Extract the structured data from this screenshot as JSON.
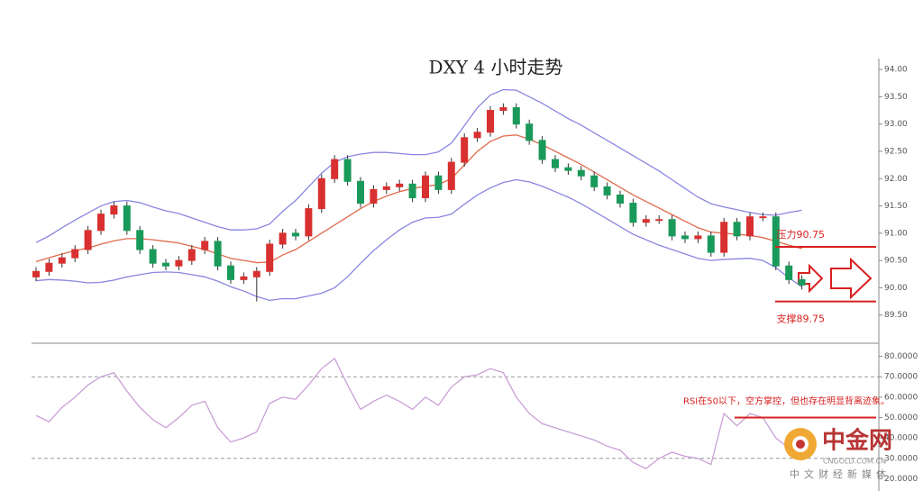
{
  "chart_data": [
    {
      "type": "candlestick",
      "title": "DXY 4 小时走势",
      "open": [
        90.2,
        90.3,
        90.45,
        90.55,
        90.7,
        91.05,
        91.35,
        91.5,
        91.05,
        90.7,
        90.45,
        90.4,
        90.5,
        90.7,
        90.85,
        90.4,
        90.15,
        90.2,
        90.3,
        90.8,
        91.0,
        90.95,
        91.45,
        92.0,
        92.35,
        91.95,
        91.55,
        91.8,
        91.85,
        91.9,
        91.65,
        92.05,
        91.8,
        92.3,
        92.75,
        92.85,
        93.25,
        93.3,
        93.0,
        92.7,
        92.35,
        92.2,
        92.15,
        92.05,
        91.85,
        91.7,
        91.55,
        91.2,
        91.25,
        91.25,
        90.95,
        90.9,
        90.95,
        90.65,
        91.2,
        90.95,
        91.3,
        91.3,
        90.4,
        90.15
      ],
      "high": [
        90.38,
        90.53,
        90.63,
        90.78,
        91.13,
        91.43,
        91.58,
        91.58,
        91.13,
        90.78,
        90.53,
        90.58,
        90.78,
        90.93,
        90.93,
        90.48,
        90.28,
        90.38,
        90.88,
        91.08,
        91.08,
        91.53,
        92.08,
        92.43,
        92.43,
        92.03,
        91.88,
        91.93,
        91.98,
        91.98,
        92.13,
        92.13,
        92.38,
        92.83,
        92.93,
        93.33,
        93.38,
        93.38,
        93.08,
        92.78,
        92.43,
        92.28,
        92.23,
        92.13,
        91.93,
        91.78,
        91.63,
        91.33,
        91.33,
        91.33,
        91.03,
        91.03,
        91.03,
        91.28,
        91.28,
        91.38,
        91.38,
        91.38,
        90.48,
        90.23
      ],
      "low": [
        90.12,
        90.22,
        90.37,
        90.47,
        90.62,
        90.97,
        91.27,
        90.97,
        90.62,
        90.37,
        90.32,
        90.32,
        90.42,
        90.62,
        90.32,
        90.07,
        90.07,
        89.75,
        90.22,
        90.72,
        90.87,
        90.87,
        91.37,
        91.92,
        91.87,
        91.47,
        91.47,
        91.72,
        91.77,
        91.57,
        91.57,
        91.72,
        91.72,
        92.22,
        92.67,
        92.77,
        93.17,
        92.92,
        92.62,
        92.27,
        92.12,
        92.07,
        91.97,
        91.77,
        91.62,
        91.47,
        91.12,
        91.12,
        91.17,
        90.87,
        90.82,
        90.82,
        90.57,
        90.57,
        90.87,
        90.87,
        91.22,
        90.32,
        90.07,
        89.97
      ],
      "close": [
        90.3,
        90.45,
        90.55,
        90.7,
        91.05,
        91.35,
        91.5,
        91.05,
        90.7,
        90.45,
        90.4,
        90.5,
        90.7,
        90.85,
        90.4,
        90.15,
        90.2,
        90.3,
        90.8,
        91.0,
        90.95,
        91.45,
        92.0,
        92.35,
        91.95,
        91.55,
        91.8,
        91.85,
        91.9,
        91.65,
        92.05,
        91.8,
        92.3,
        92.75,
        92.85,
        93.25,
        93.3,
        93.0,
        92.7,
        92.35,
        92.2,
        92.15,
        92.05,
        91.85,
        91.7,
        91.55,
        91.2,
        91.25,
        91.25,
        90.95,
        90.9,
        90.95,
        90.65,
        91.2,
        90.95,
        91.3,
        91.3,
        90.4,
        90.15,
        90.05
      ],
      "up_color": "#d83030",
      "down_color": "#1a9a5a",
      "bands": [
        {
          "color": "#8a86e0",
          "values": [
            90.83,
            90.95,
            91.1,
            91.24,
            91.37,
            91.5,
            91.58,
            91.6,
            91.56,
            91.48,
            91.41,
            91.36,
            91.28,
            91.2,
            91.12,
            91.06,
            91.06,
            91.08,
            91.17,
            91.4,
            91.6,
            91.85,
            92.1,
            92.3,
            92.4,
            92.45,
            92.48,
            92.48,
            92.46,
            92.44,
            92.44,
            92.49,
            92.65,
            92.97,
            93.3,
            93.53,
            93.63,
            93.62,
            93.5,
            93.38,
            93.24,
            93.1,
            92.98,
            92.84,
            92.7,
            92.56,
            92.42,
            92.28,
            92.14,
            91.98,
            91.82,
            91.66,
            91.54,
            91.48,
            91.43,
            91.38,
            91.34,
            91.33,
            91.38,
            91.42
          ]
        },
        {
          "color": "#e06a4a",
          "values": [
            90.48,
            90.55,
            90.62,
            90.68,
            90.73,
            90.8,
            90.86,
            90.9,
            90.9,
            90.88,
            90.85,
            90.82,
            90.76,
            90.7,
            90.62,
            90.54,
            90.5,
            90.46,
            90.47,
            90.6,
            90.7,
            90.85,
            91.0,
            91.15,
            91.3,
            91.45,
            91.58,
            91.68,
            91.76,
            91.82,
            91.86,
            91.89,
            92.0,
            92.25,
            92.5,
            92.68,
            92.78,
            92.8,
            92.72,
            92.62,
            92.5,
            92.38,
            92.26,
            92.12,
            91.98,
            91.84,
            91.7,
            91.58,
            91.46,
            91.34,
            91.22,
            91.1,
            91.02,
            91.0,
            90.98,
            90.96,
            90.92,
            90.85,
            90.78,
            90.72
          ]
        },
        {
          "color": "#8a86e0",
          "values": [
            90.13,
            90.15,
            90.14,
            90.12,
            90.09,
            90.1,
            90.14,
            90.2,
            90.24,
            90.28,
            90.29,
            90.28,
            90.24,
            90.2,
            90.12,
            90.02,
            89.94,
            89.84,
            89.77,
            89.8,
            89.8,
            89.85,
            89.9,
            90.0,
            90.2,
            90.45,
            90.68,
            90.88,
            91.06,
            91.2,
            91.28,
            91.29,
            91.35,
            91.53,
            91.7,
            91.83,
            91.93,
            91.98,
            91.94,
            91.86,
            91.76,
            91.66,
            91.54,
            91.4,
            91.26,
            91.12,
            90.98,
            90.88,
            90.78,
            90.7,
            90.62,
            90.54,
            90.5,
            90.52,
            90.53,
            90.54,
            90.5,
            90.37,
            90.18,
            90.02
          ]
        }
      ],
      "ylim": [
        89.0,
        94.2
      ],
      "yticks": [
        {
          "value": 94,
          "label": "94.00"
        },
        {
          "value": 93.5,
          "label": "93.50"
        },
        {
          "value": 93,
          "label": "93.00"
        },
        {
          "value": 92.5,
          "label": "92.50"
        },
        {
          "value": 92,
          "label": "92.00"
        },
        {
          "value": 91.5,
          "label": "91.50"
        },
        {
          "value": 91,
          "label": "91.00"
        },
        {
          "value": 90.5,
          "label": "90.50"
        },
        {
          "value": 90,
          "label": "90.00"
        },
        {
          "value": 89.5,
          "label": "89.50"
        }
      ],
      "levels": [
        {
          "label": "压力90.75",
          "value": 90.75,
          "color": "#d82020"
        },
        {
          "label": "支撑89.75",
          "value": 89.75,
          "color": "#d82020"
        }
      ]
    },
    {
      "type": "line",
      "values": [
        51,
        48,
        55,
        60,
        66,
        70,
        72,
        63,
        55,
        49,
        45,
        50,
        56,
        58,
        45,
        38,
        40,
        43,
        57,
        60,
        59,
        66,
        74,
        79,
        66,
        54,
        58,
        61,
        58,
        54,
        60,
        56,
        65,
        70,
        71,
        74,
        72,
        60,
        52,
        47,
        45,
        43,
        41,
        39,
        36,
        34,
        28,
        25,
        30,
        33,
        31,
        30,
        27,
        52,
        46,
        52,
        50,
        40,
        35,
        32
      ],
      "color": "#c9a0d6",
      "ylim": [
        14,
        86
      ],
      "yticks": [
        {
          "value": 80,
          "label": "80.0000"
        },
        {
          "value": 70,
          "label": "70.0000"
        },
        {
          "value": 60,
          "label": "60.0000"
        },
        {
          "value": 50,
          "label": "50.0000"
        },
        {
          "value": 40,
          "label": "40.0000"
        },
        {
          "value": 30,
          "label": "30.0000"
        },
        {
          "value": 20,
          "label": "20.0000"
        }
      ],
      "ref_lines": [
        70,
        30
      ],
      "levels": [
        {
          "label": "RSI在50以下，空方掌控，但也存在明显背离迹象。",
          "value": 50,
          "color": "#d82020"
        }
      ]
    }
  ],
  "watermark": {
    "name": "中金网",
    "site": "CNGOLD.COM.CN",
    "slogan": "中文财经新媒体"
  }
}
